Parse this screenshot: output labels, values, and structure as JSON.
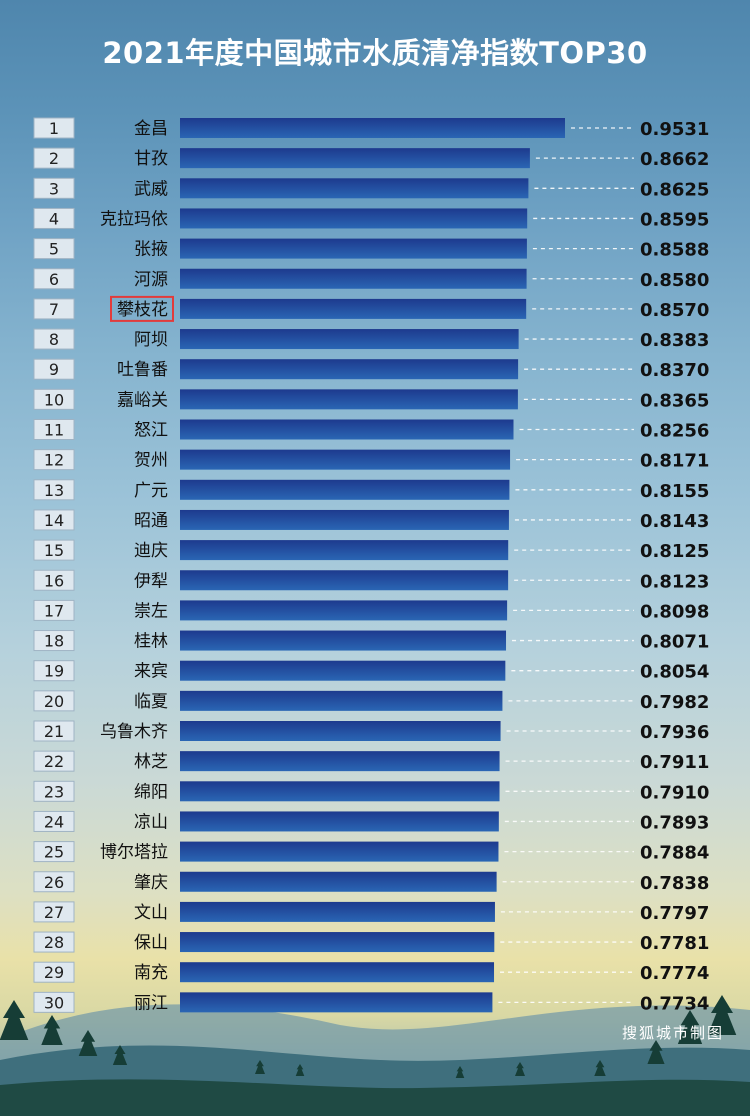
{
  "title": "2021年度中国城市水质清净指数TOP30",
  "credit": "搜狐城市制图",
  "highlight_index": 6,
  "colors": {
    "bar_dark": "#1d3a8e",
    "bar_light": "#2a66b4",
    "rank_box": "#dfe8ef",
    "highlight_border": "#e23b3b",
    "label_text": "#111111"
  },
  "chart_data": {
    "type": "bar",
    "orientation": "horizontal",
    "title": "2021年度中国城市水质清净指数TOP30",
    "ranks": [
      "1",
      "2",
      "3",
      "4",
      "5",
      "6",
      "7",
      "8",
      "9",
      "10",
      "11",
      "12",
      "13",
      "14",
      "15",
      "16",
      "17",
      "18",
      "19",
      "20",
      "21",
      "22",
      "23",
      "24",
      "25",
      "26",
      "27",
      "28",
      "29",
      "30"
    ],
    "categories": [
      "金昌",
      "甘孜",
      "武威",
      "克拉玛依",
      "张掖",
      "河源",
      "攀枝花",
      "阿坝",
      "吐鲁番",
      "嘉峪关",
      "怒江",
      "贺州",
      "广元",
      "昭通",
      "迪庆",
      "伊犁",
      "崇左",
      "桂林",
      "来宾",
      "临夏",
      "乌鲁木齐",
      "林芝",
      "绵阳",
      "凉山",
      "博尔塔拉",
      "肇庆",
      "文山",
      "保山",
      "南充",
      "丽江"
    ],
    "values": [
      0.9531,
      0.8662,
      0.8625,
      0.8595,
      0.8588,
      0.858,
      0.857,
      0.8383,
      0.837,
      0.8365,
      0.8256,
      0.8171,
      0.8155,
      0.8143,
      0.8125,
      0.8123,
      0.8098,
      0.8071,
      0.8054,
      0.7982,
      0.7936,
      0.7911,
      0.791,
      0.7893,
      0.7884,
      0.7838,
      0.7797,
      0.7781,
      0.7774,
      0.7734
    ],
    "value_labels": [
      "0.9531",
      "0.8662",
      "0.8625",
      "0.8595",
      "0.8588",
      "0.8580",
      "0.8570",
      "0.8383",
      "0.8370",
      "0.8365",
      "0.8256",
      "0.8171",
      "0.8155",
      "0.8143",
      "0.8125",
      "0.8123",
      "0.8098",
      "0.8071",
      "0.8054",
      "0.7982",
      "0.7936",
      "0.7911",
      "0.7910",
      "0.7893",
      "0.7884",
      "0.7838",
      "0.7797",
      "0.7781",
      "0.7774",
      "0.7734"
    ],
    "xlim": [
      0,
      0.9531
    ]
  }
}
